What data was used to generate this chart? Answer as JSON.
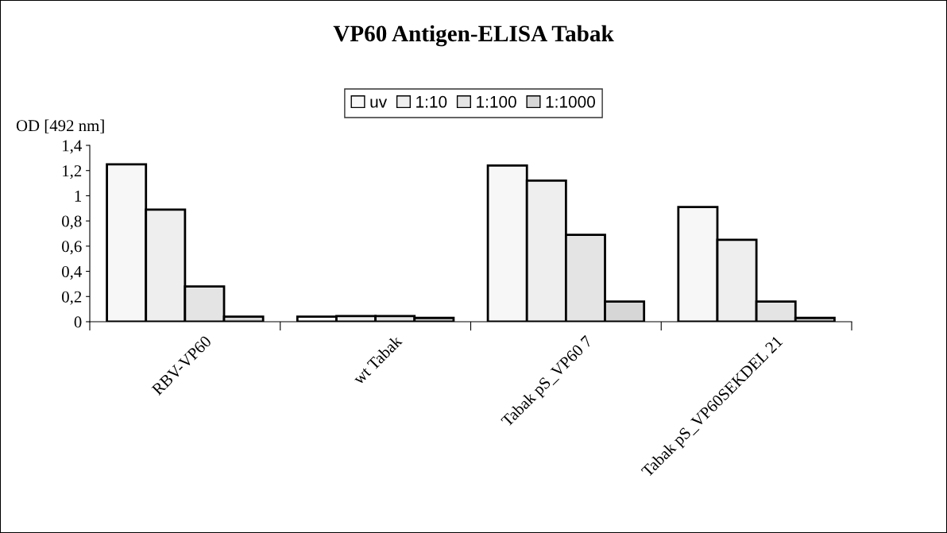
{
  "chart_data": {
    "type": "bar",
    "title": "VP60 Antigen-ELISA Tabak",
    "ylabel": "OD [492 nm]",
    "categories": [
      "RBV-VP60",
      "wt Tabak",
      "Tabak pS_VP60 7",
      "Tabak pS_VP60SEKDEL 21"
    ],
    "series": [
      {
        "name": "uv",
        "color": "#f7f7f7",
        "values": [
          1.25,
          0.04,
          1.24,
          0.91
        ]
      },
      {
        "name": "1:10",
        "color": "#eeeeee",
        "values": [
          0.89,
          0.045,
          1.12,
          0.65
        ]
      },
      {
        "name": "1:100",
        "color": "#e4e4e4",
        "values": [
          0.28,
          0.045,
          0.69,
          0.16
        ]
      },
      {
        "name": "1:1000",
        "color": "#d6d6d6",
        "values": [
          0.04,
          0.03,
          0.16,
          0.03
        ]
      }
    ],
    "ylim": [
      0,
      1.4
    ],
    "yticks": [
      0,
      {
        "value": 0.2,
        "label": "0,2"
      },
      {
        "value": 0.4,
        "label": "0,4"
      },
      {
        "value": 0.6,
        "label": "0,6"
      },
      {
        "value": 0.8,
        "label": "0,8"
      },
      1,
      {
        "value": 1.2,
        "label": "1,2"
      },
      {
        "value": 1.4,
        "label": "1,4"
      }
    ],
    "grid": false,
    "legend": "top"
  }
}
